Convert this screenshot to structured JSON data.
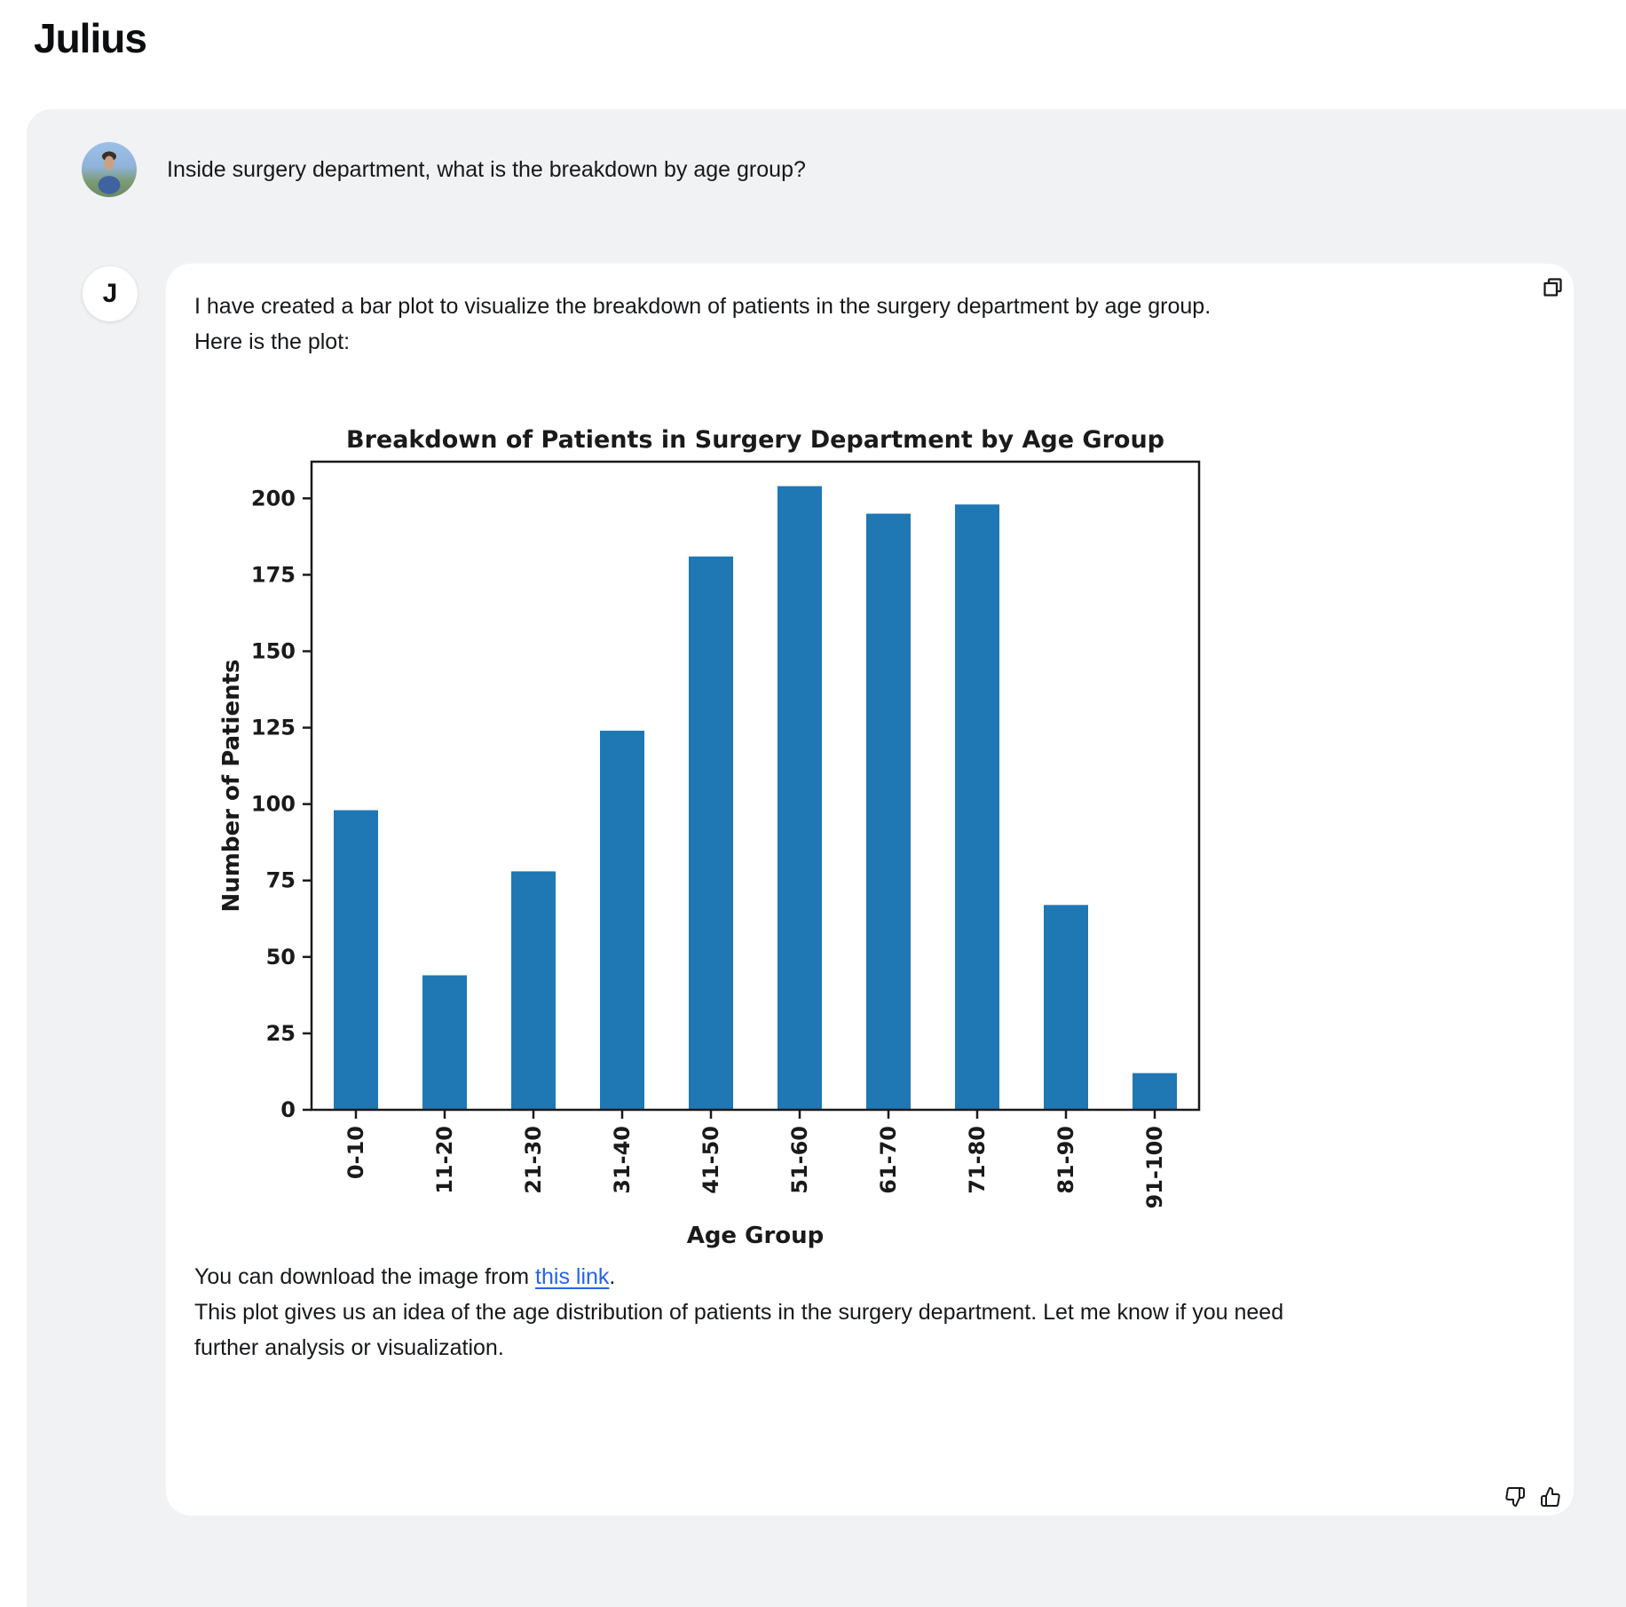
{
  "app": {
    "title": "Julius"
  },
  "user_message": {
    "text": "Inside surgery department, what is the breakdown by age group?"
  },
  "assistant": {
    "avatar_letter": "J",
    "paragraph1": "I have created a bar plot to visualize the breakdown of patients in the surgery department by age group.",
    "paragraph2": "Here is the plot:",
    "download": {
      "prefix": "You can download the image from ",
      "link_text": "this link",
      "suffix": "."
    },
    "paragraph3": "This plot gives us an idea of the age distribution of patients in the surgery department. Let me know if you need further analysis or visualization.",
    "icons": [
      "copy-icon",
      "thumbs-down-icon",
      "thumbs-up-icon"
    ]
  },
  "colors": {
    "container_gray": "#f1f2f4",
    "card_white": "#ffffff",
    "text": "#16181a",
    "link_blue": "#2563eb",
    "bar_blue": "#1f77b4",
    "chart_text": "#1a1a1a"
  },
  "chart_data": {
    "type": "bar",
    "title": "Breakdown of Patients in Surgery Department by Age Group",
    "categories": [
      "0-10",
      "11-20",
      "21-30",
      "31-40",
      "41-50",
      "51-60",
      "61-70",
      "71-80",
      "81-90",
      "91-100"
    ],
    "values": [
      98,
      44,
      78,
      124,
      181,
      204,
      195,
      198,
      67,
      12
    ],
    "xlabel": "Age Group",
    "ylabel": "Number of Patients",
    "ylim": [
      0,
      212
    ],
    "yticks": [
      0,
      25,
      50,
      75,
      100,
      125,
      150,
      175,
      200
    ],
    "xtick_rotation": 90,
    "bar_color": "#1f77b4",
    "grid": false,
    "legend": "none"
  }
}
